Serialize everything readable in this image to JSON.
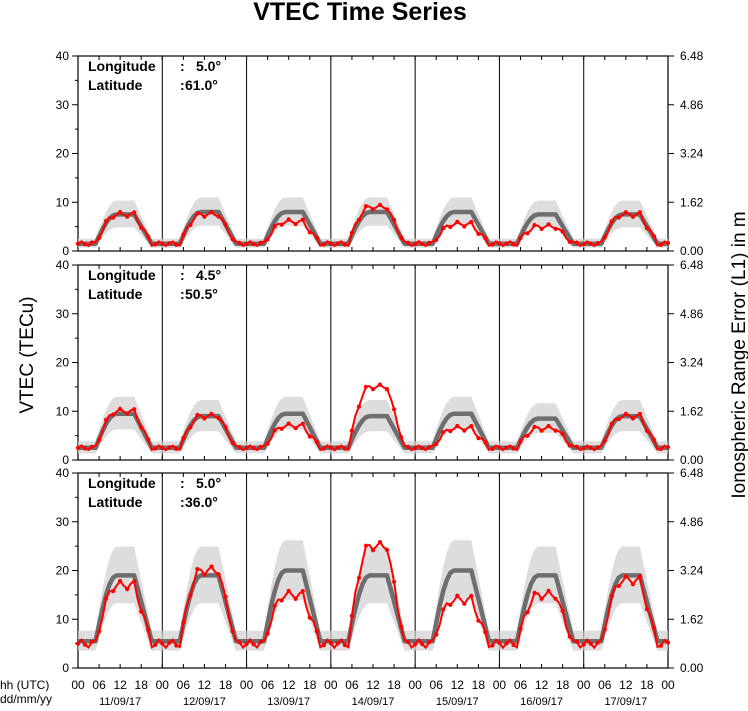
{
  "chart_data": {
    "type": "line",
    "title": "VTEC Time Series",
    "ylabel_left": "VTEC (TECu)",
    "ylabel_right": "Ionospheric Range Error (L1) in m",
    "x_axis_row_labels": [
      "hh (UTC)",
      "dd/mm/yy"
    ],
    "hour_ticks": [
      "00",
      "06",
      "12",
      "18",
      "00",
      "06",
      "12",
      "18",
      "00",
      "06",
      "12",
      "18",
      "00",
      "06",
      "12",
      "18",
      "00",
      "06",
      "12",
      "18",
      "00",
      "06",
      "12",
      "18",
      "00",
      "06",
      "12",
      "18",
      "00"
    ],
    "day_labels": [
      "11/09/17",
      "12/09/17",
      "13/09/17",
      "14/09/17",
      "15/09/17",
      "16/09/17",
      "17/09/17"
    ],
    "ylim": [
      0,
      40
    ],
    "left_ticks": [
      "0",
      "10",
      "20",
      "30",
      "40"
    ],
    "right_ticks": [
      "0.00",
      "1.62",
      "3.24",
      "4.86",
      "6.48"
    ],
    "series_colors": {
      "reference": "#6e6e6e",
      "band": "#cfcfcf",
      "current": "#ff0000"
    },
    "panels": [
      {
        "longitude_label": "Longitude",
        "longitude_value": "5.0°",
        "latitude_label": "Latitude",
        "latitude_value": "61.0°",
        "reference": {
          "min": 1.5,
          "peak": [
            7.5,
            8,
            8,
            8,
            8,
            7.5,
            7.5
          ]
        },
        "current": {
          "min": 1.5,
          "peak": [
            7.5,
            7.5,
            6,
            9,
            5.5,
            5,
            7.5
          ]
        }
      },
      {
        "longitude_label": "Longitude",
        "longitude_value": "4.5°",
        "latitude_label": "Latitude",
        "latitude_value": "50.5°",
        "reference": {
          "min": 2.5,
          "peak": [
            9.5,
            9,
            9.5,
            9,
            9.5,
            8.5,
            9
          ]
        },
        "current": {
          "min": 2.5,
          "peak": [
            10,
            9,
            7,
            15,
            6.5,
            6.5,
            9
          ]
        }
      },
      {
        "longitude_label": "Longitude",
        "longitude_value": "5.0°",
        "latitude_label": "Latitude",
        "latitude_value": "36.0°",
        "reference": {
          "min": 5.5,
          "peak": [
            19,
            19,
            20,
            19,
            20,
            19,
            19
          ]
        },
        "current": {
          "min": 5,
          "peak": [
            17,
            20,
            15,
            25,
            14,
            15,
            18
          ]
        }
      }
    ]
  }
}
